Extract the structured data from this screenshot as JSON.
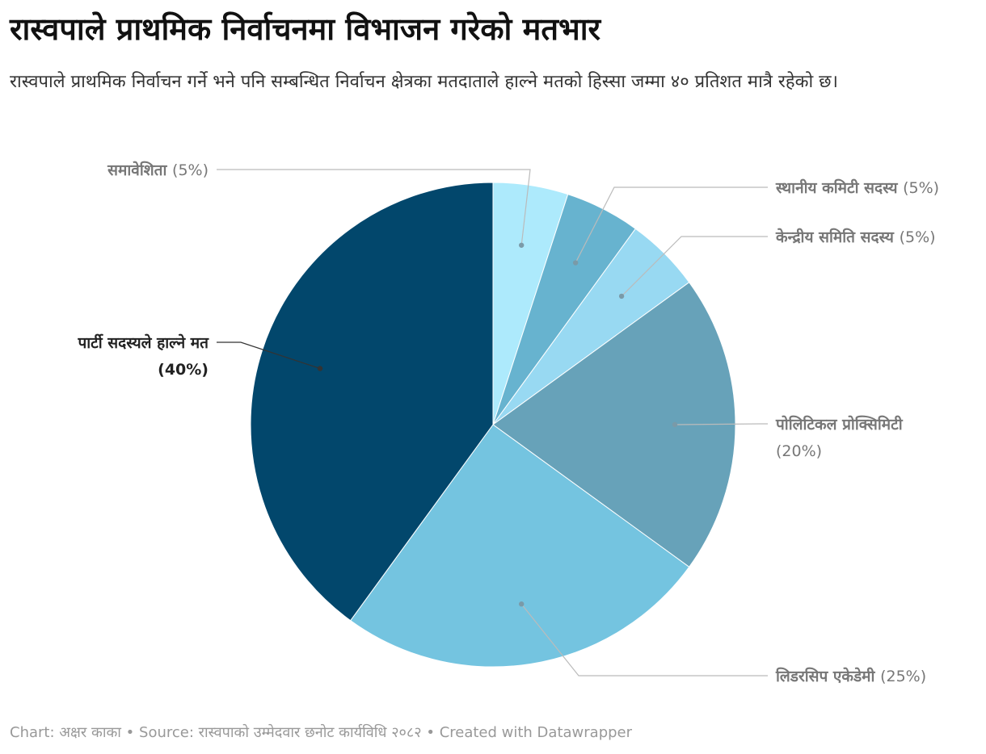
{
  "header": {
    "title": "रास्वपाले प्राथमिक निर्वाचनमा विभाजन गरेको मतभार",
    "subtitle": "रास्वपाले प्राथमिक निर्वाचन गर्ने भने पनि सम्बन्धित निर्वाचन क्षेत्रका मतदाताले हाल्ने मतको हिस्सा जम्मा ४० प्रतिशत मात्रै रहेको छ।"
  },
  "chart_data": {
    "type": "pie",
    "slices": [
      {
        "label": "समावेशिता",
        "value": 5,
        "value_label": "(5%)",
        "color": "#adeafc"
      },
      {
        "label": "स्थानीय कमिटी सदस्य",
        "value": 5,
        "value_label": "(5%)",
        "color": "#67b3cf"
      },
      {
        "label": "केन्द्रीय समिति सदस्य",
        "value": 5,
        "value_label": "(5%)",
        "color": "#98d9f2"
      },
      {
        "label": "पोलिटिकल प्रोक्सिमिटी",
        "value": 20,
        "value_label": "(20%)",
        "color": "#67a2b9"
      },
      {
        "label": "लिडरसिप एकेडेमी",
        "value": 25,
        "value_label": "(25%)",
        "color": "#74c4e0"
      },
      {
        "label": "पार्टी सदस्यले हाल्ने मत",
        "value": 40,
        "value_label": "(40%)",
        "color": "#02476c"
      }
    ]
  },
  "footer": {
    "text": "Chart: अक्षर काका • Source: रास्वपाको उम्मेदवार छनोट कार्यविधि २०८२ • Created with Datawrapper"
  }
}
